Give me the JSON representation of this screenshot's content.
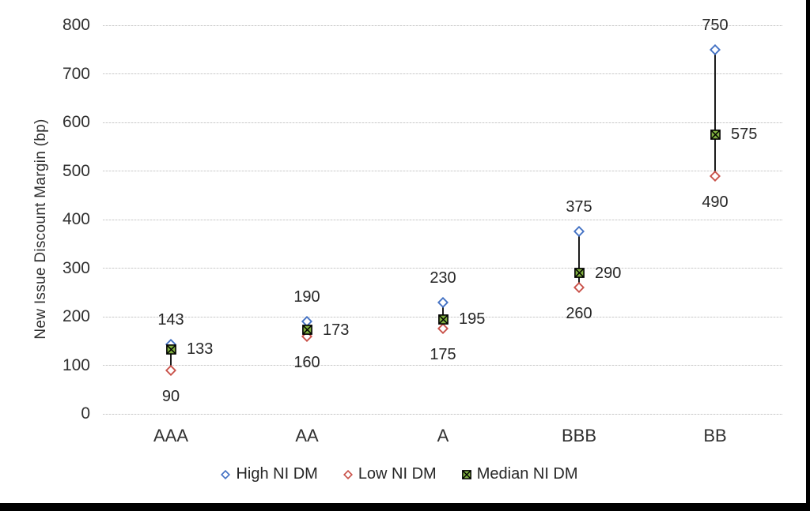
{
  "chart_data": {
    "type": "scatter",
    "title": "",
    "xlabel": "",
    "ylabel": "New Issue Discount Margin (bp)",
    "categories": [
      "AAA",
      "AA",
      "A",
      "BBB",
      "BB"
    ],
    "series": [
      {
        "name": "High NI DM",
        "marker": "hollow-diamond",
        "color": "#4472C4",
        "values": [
          143,
          190,
          230,
          375,
          750
        ]
      },
      {
        "name": "Low NI DM",
        "marker": "hollow-diamond",
        "color": "#C9524A",
        "values": [
          90,
          160,
          175,
          260,
          490
        ]
      },
      {
        "name": "Median NI DM",
        "marker": "square-x",
        "color": "#7FAF3F",
        "values": [
          133,
          173,
          195,
          290,
          575
        ]
      }
    ],
    "ylim": [
      0,
      800
    ],
    "ytick_step": 100,
    "grid": true,
    "gridline_color": "#c9c9c9",
    "connector_color": "#1c1c1c",
    "legend_position": "bottom",
    "data_labels": true,
    "label_placement": {
      "high": "above",
      "low": "below",
      "median": "right"
    }
  }
}
